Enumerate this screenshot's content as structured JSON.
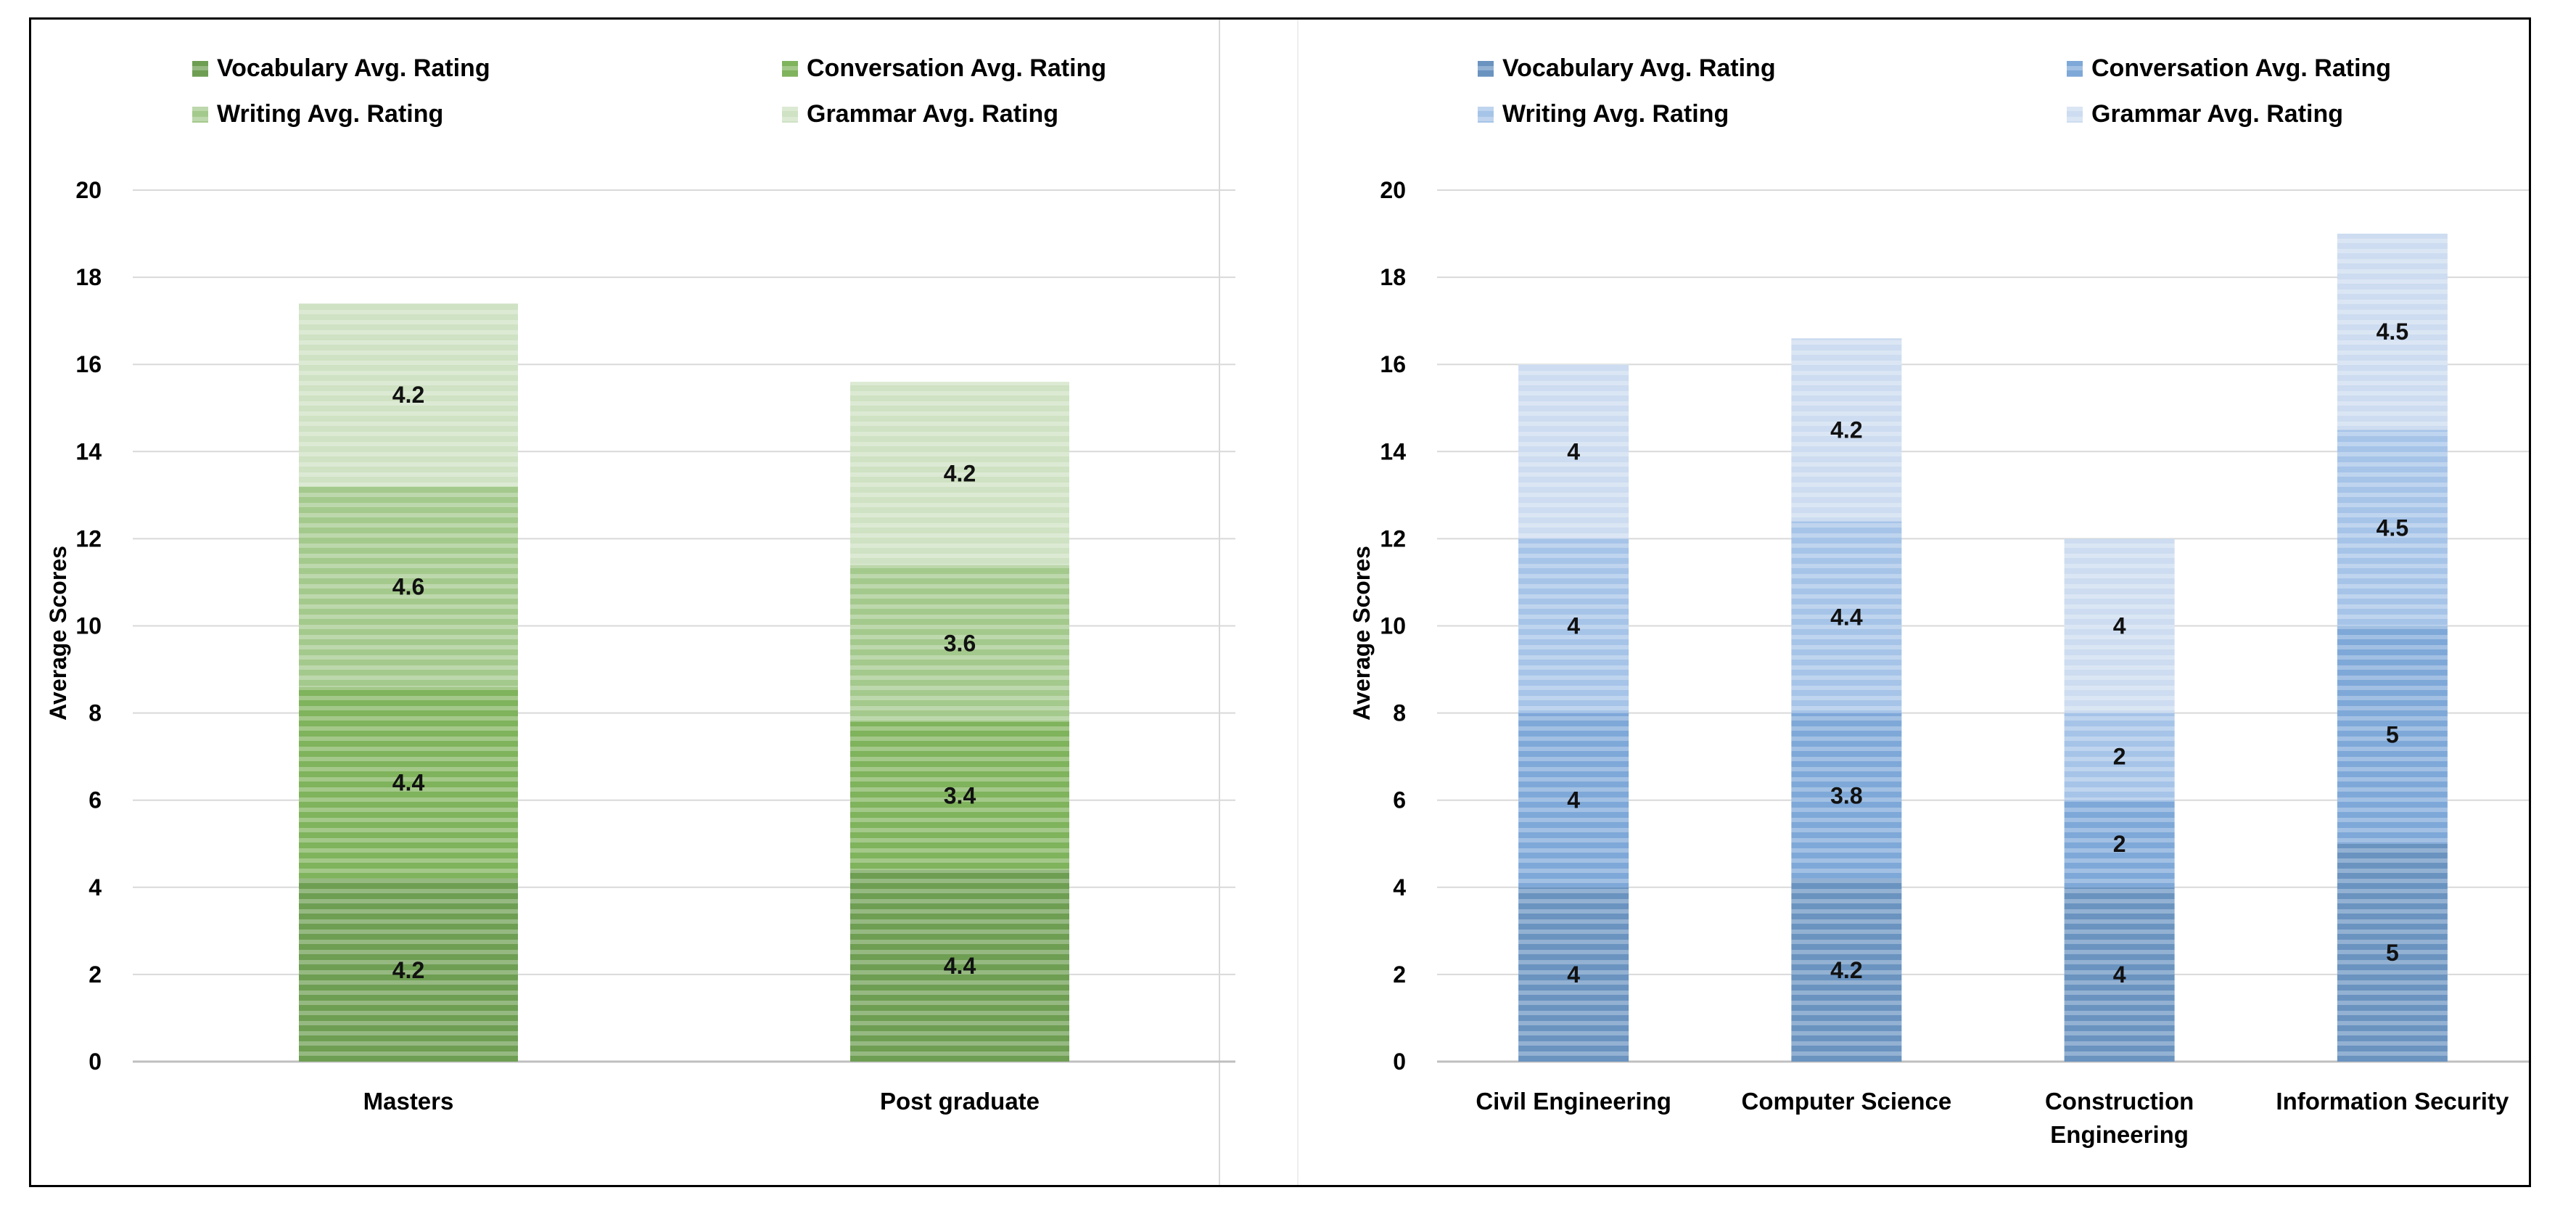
{
  "chart_data": [
    {
      "type": "bar",
      "stacked": true,
      "theme": "green",
      "categories": [
        "Masters",
        "Post graduate"
      ],
      "series": [
        {
          "name": "Vocabulary Avg. Rating",
          "values": [
            4.2,
            4.4
          ],
          "color": "#6e9e52"
        },
        {
          "name": "Conversation Avg. Rating",
          "values": [
            4.4,
            3.4
          ],
          "color": "#7fb35c"
        },
        {
          "name": "Writing Avg. Rating",
          "values": [
            4.6,
            3.6
          ],
          "color": "#a4c98c"
        },
        {
          "name": "Grammar Avg. Rating",
          "values": [
            4.2,
            4.2
          ],
          "color": "#cfe2c3"
        }
      ],
      "ylabel": "Average Scores",
      "xlabel": "",
      "ylim": [
        0,
        20
      ],
      "yticks": [
        0,
        2,
        4,
        6,
        8,
        10,
        12,
        14,
        16,
        18,
        20
      ],
      "grid": true,
      "legend": "top"
    },
    {
      "type": "bar",
      "stacked": true,
      "theme": "blue",
      "categories": [
        "Civil Engineering",
        "Computer Science",
        "Construction Engineering",
        "Information Security"
      ],
      "category_lines": [
        [
          "Civil Engineering"
        ],
        [
          "Computer Science"
        ],
        [
          "Construction",
          "Engineering"
        ],
        [
          "Information Security"
        ]
      ],
      "series": [
        {
          "name": "Vocabulary Avg. Rating",
          "values": [
            4,
            4.2,
            4,
            5
          ],
          "color": "#6a93c0"
        },
        {
          "name": "Conversation Avg. Rating",
          "values": [
            4,
            3.8,
            2,
            5
          ],
          "color": "#7ea8d8"
        },
        {
          "name": "Writing Avg. Rating",
          "values": [
            4,
            4.4,
            2,
            4.5
          ],
          "color": "#a6c4e8"
        },
        {
          "name": "Grammar Avg. Rating",
          "values": [
            4,
            4.2,
            4,
            4.5
          ],
          "color": "#cddcf0"
        }
      ],
      "ylabel": "Average Scores",
      "xlabel": "",
      "ylim": [
        0,
        20
      ],
      "yticks": [
        0,
        2,
        4,
        6,
        8,
        10,
        12,
        14,
        16,
        18,
        20
      ],
      "grid": true,
      "legend": "top"
    }
  ]
}
